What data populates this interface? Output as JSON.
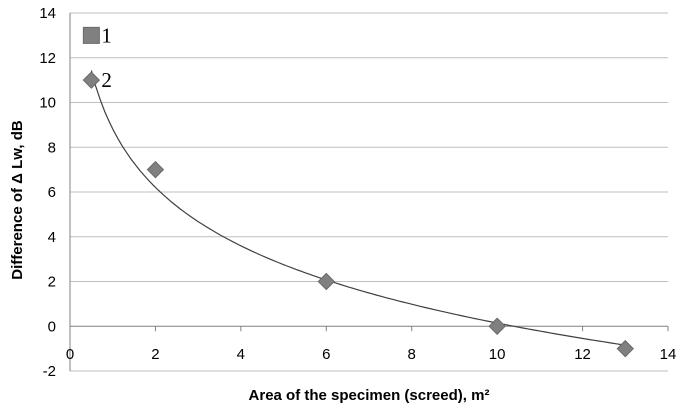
{
  "chart_data": {
    "type": "scatter",
    "title": "",
    "xlabel": "Area of the specimen (screed), m²",
    "ylabel": "Difference of Δ Lw, dB",
    "xlim": [
      0,
      14
    ],
    "ylim": [
      -2,
      14
    ],
    "x_ticks": [
      "0",
      "2",
      "4",
      "6",
      "8",
      "10",
      "12",
      "14"
    ],
    "y_ticks": [
      "-2",
      "0",
      "2",
      "4",
      "6",
      "8",
      "10",
      "12",
      "14"
    ],
    "grid": "horizontal",
    "legend": "none",
    "series": [
      {
        "marker": "square",
        "color": "#808080",
        "points": [
          {
            "x": 0.5,
            "y": 13
          }
        ]
      },
      {
        "marker": "diamond",
        "color": "#808080",
        "points": [
          {
            "x": 0.5,
            "y": 11
          },
          {
            "x": 2,
            "y": 7
          },
          {
            "x": 6,
            "y": 2
          },
          {
            "x": 10,
            "y": 0
          },
          {
            "x": 13,
            "y": -1
          }
        ]
      }
    ],
    "annotations": [
      {
        "text": "1",
        "x": 0.5,
        "y": 13
      },
      {
        "text": "2",
        "x": 0.5,
        "y": 11
      }
    ],
    "trendline": {
      "type": "logarithmic",
      "color": "#404040",
      "x_range": [
        0.5,
        13
      ]
    }
  }
}
